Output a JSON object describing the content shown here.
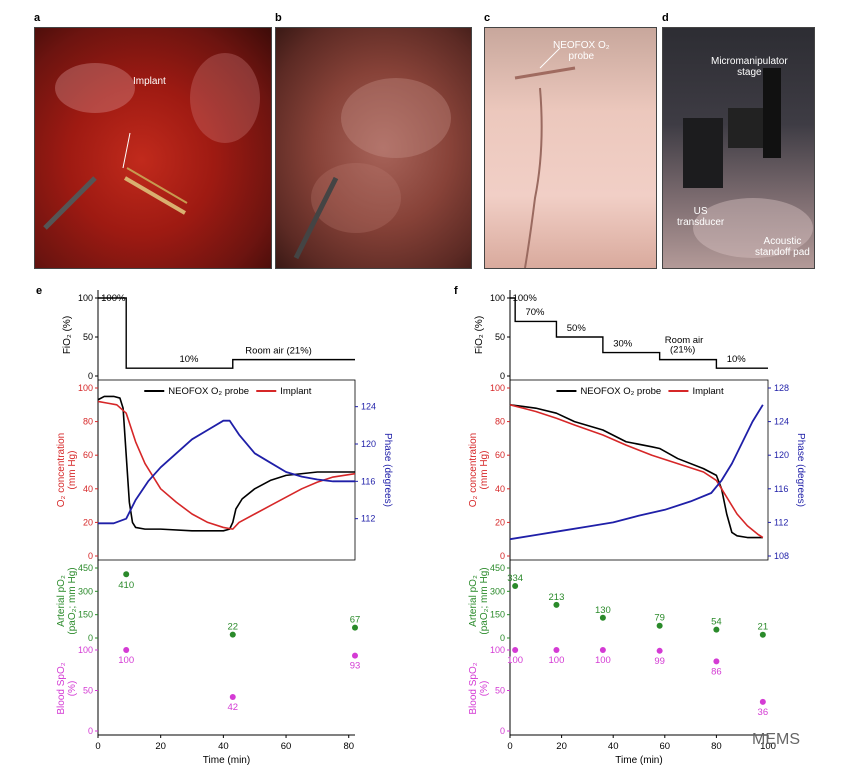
{
  "panels": {
    "a": {
      "label": "a",
      "annotation": "Implant"
    },
    "b": {
      "label": "b"
    },
    "c": {
      "label": "c",
      "annotation_line1": "NEOFOX O₂",
      "annotation_line2": "probe"
    },
    "d": {
      "label": "d",
      "ann1_line1": "Micromanipulator",
      "ann1_line2": "stage",
      "ann2_line1": "US",
      "ann2_line2": "transducer",
      "ann3_line1": "Acoustic",
      "ann3_line2": "standoff pad"
    }
  },
  "plots": {
    "e": {
      "label": "e"
    },
    "f": {
      "label": "f"
    },
    "fio2_ylabel": "FiO₂ (%)",
    "o2_ylabel_1": "O₂ concentration",
    "o2_ylabel_2": "(mm Hg)",
    "phase_ylabel": "Phase (degrees)",
    "arterial_ylabel_1": "Arterial pO₂",
    "arterial_ylabel_2": "(paO₂; mm Hg)",
    "spo2_ylabel_1": "Blood SpO₂",
    "spo2_ylabel_2": "(%)",
    "xlabel": "Time (min)",
    "legend_probe": "NEOFOX O₂ probe",
    "legend_implant": "Implant",
    "colors": {
      "probe": "#000000",
      "implant": "#d62728",
      "phase": "#1f1fa8",
      "arterial": "#2a8a2a",
      "spo2": "#d43bd4"
    }
  },
  "watermark": "MEMS",
  "chart_data": [
    {
      "type": "line",
      "panel": "e",
      "title": "",
      "fio2": {
        "ylim": [
          0,
          100
        ],
        "yticks": [
          0,
          50,
          100
        ],
        "x": [
          0,
          9,
          9,
          43,
          43,
          82
        ],
        "y": [
          100,
          100,
          10,
          10,
          21,
          21
        ],
        "annotations": [
          "100%",
          "10%",
          "Room air (21%)"
        ]
      },
      "o2": {
        "xlim": [
          0,
          82
        ],
        "ylim": [
          0,
          100
        ],
        "yticks": [
          0,
          20,
          40,
          60,
          80,
          100
        ],
        "phase_ylim": [
          108,
          126
        ],
        "phase_yticks": [
          112,
          116,
          120,
          124
        ],
        "series": [
          {
            "name": "NEOFOX O₂ probe",
            "x": [
              0,
              2,
              5,
              7,
              8,
              9,
              10,
              11,
              12,
              15,
              20,
              30,
              40,
              42,
              43,
              44,
              46,
              50,
              55,
              60,
              70,
              82
            ],
            "y": [
              93,
              95,
              95,
              94,
              88,
              60,
              32,
              20,
              17,
              16,
              16,
              15,
              15,
              16,
              20,
              28,
              34,
              40,
              45,
              48,
              50,
              50
            ]
          },
          {
            "name": "Implant",
            "x": [
              0,
              3,
              6,
              9,
              12,
              15,
              20,
              25,
              30,
              35,
              40,
              43,
              45,
              50,
              55,
              60,
              65,
              70,
              75,
              82
            ],
            "y": [
              92,
              91,
              90,
              85,
              68,
              55,
              40,
              32,
              25,
              20,
              17,
              16,
              20,
              25,
              30,
              35,
              40,
              44,
              47,
              49
            ]
          },
          {
            "name": "Phase",
            "axis": "right",
            "x": [
              0,
              5,
              9,
              12,
              16,
              20,
              25,
              30,
              35,
              40,
              42,
              45,
              50,
              55,
              60,
              65,
              70,
              75,
              82
            ],
            "y": [
              111.5,
              111.5,
              112,
              114,
              116,
              117.5,
              119,
              120.5,
              121.5,
              122.5,
              122.5,
              121,
              119,
              118,
              117,
              116.5,
              116.2,
              116,
              116
            ]
          }
        ],
        "xticks": [
          0,
          20,
          40,
          60,
          80
        ]
      },
      "arterial": {
        "ylim": [
          0,
          450
        ],
        "yticks": [
          0,
          150,
          300,
          450
        ],
        "x": [
          9,
          43,
          82
        ],
        "y": [
          410,
          22,
          67
        ],
        "labels": [
          "410",
          "22",
          "67"
        ]
      },
      "spo2": {
        "ylim": [
          0,
          100
        ],
        "yticks": [
          0,
          50,
          100
        ],
        "x": [
          9,
          43,
          82
        ],
        "y": [
          100,
          42,
          93
        ],
        "labels": [
          "100",
          "42",
          "93"
        ]
      },
      "xlabel": "Time (min)"
    },
    {
      "type": "line",
      "panel": "f",
      "title": "",
      "fio2": {
        "ylim": [
          0,
          100
        ],
        "yticks": [
          0,
          50,
          100
        ],
        "x": [
          0,
          2,
          2,
          18,
          18,
          36,
          36,
          58,
          58,
          80,
          80,
          100
        ],
        "y": [
          100,
          100,
          70,
          70,
          50,
          50,
          30,
          30,
          21,
          21,
          10,
          10
        ],
        "annotations": [
          "100%",
          "70%",
          "50%",
          "30%",
          "Room air",
          "(21%)",
          "10%"
        ]
      },
      "o2": {
        "xlim": [
          0,
          100
        ],
        "ylim": [
          0,
          100
        ],
        "yticks": [
          0,
          20,
          40,
          60,
          80,
          100
        ],
        "phase_ylim": [
          108,
          128
        ],
        "phase_yticks": [
          108,
          112,
          116,
          120,
          124,
          128
        ],
        "series": [
          {
            "name": "NEOFOX O₂ probe",
            "x": [
              0,
              5,
              10,
              18,
              25,
              36,
              45,
              55,
              58,
              65,
              75,
              80,
              82,
              84,
              86,
              88,
              92,
              98
            ],
            "y": [
              90,
              89,
              88,
              85,
              80,
              75,
              68,
              65,
              64,
              58,
              52,
              48,
              40,
              25,
              14,
              12,
              11,
              11
            ]
          },
          {
            "name": "Implant",
            "x": [
              0,
              5,
              10,
              18,
              25,
              36,
              45,
              55,
              65,
              75,
              80,
              84,
              88,
              92,
              96,
              98
            ],
            "y": [
              90,
              88,
              86,
              82,
              78,
              72,
              66,
              60,
              55,
              50,
              45,
              35,
              25,
              18,
              13,
              11
            ]
          },
          {
            "name": "Phase",
            "axis": "right",
            "x": [
              0,
              10,
              20,
              30,
              40,
              50,
              60,
              70,
              78,
              82,
              86,
              90,
              94,
              98
            ],
            "y": [
              110,
              110.5,
              111,
              111.5,
              112,
              112.8,
              113.5,
              114.5,
              115.5,
              117,
              119,
              121.5,
              124,
              126
            ]
          }
        ],
        "xticks": [
          0,
          20,
          40,
          60,
          80,
          100
        ]
      },
      "arterial": {
        "ylim": [
          0,
          450
        ],
        "yticks": [
          0,
          150,
          300,
          450
        ],
        "x": [
          2,
          18,
          36,
          58,
          80,
          98
        ],
        "y": [
          334,
          213,
          130,
          79,
          54,
          21
        ],
        "labels": [
          "334",
          "213",
          "130",
          "79",
          "54",
          "21"
        ]
      },
      "spo2": {
        "ylim": [
          0,
          100
        ],
        "yticks": [
          0,
          50,
          100
        ],
        "x": [
          2,
          18,
          36,
          58,
          80,
          98
        ],
        "y": [
          100,
          100,
          100,
          99,
          86,
          36
        ],
        "labels": [
          "100",
          "100",
          "100",
          "99",
          "86",
          "36"
        ]
      },
      "xlabel": "Time (min)"
    }
  ]
}
